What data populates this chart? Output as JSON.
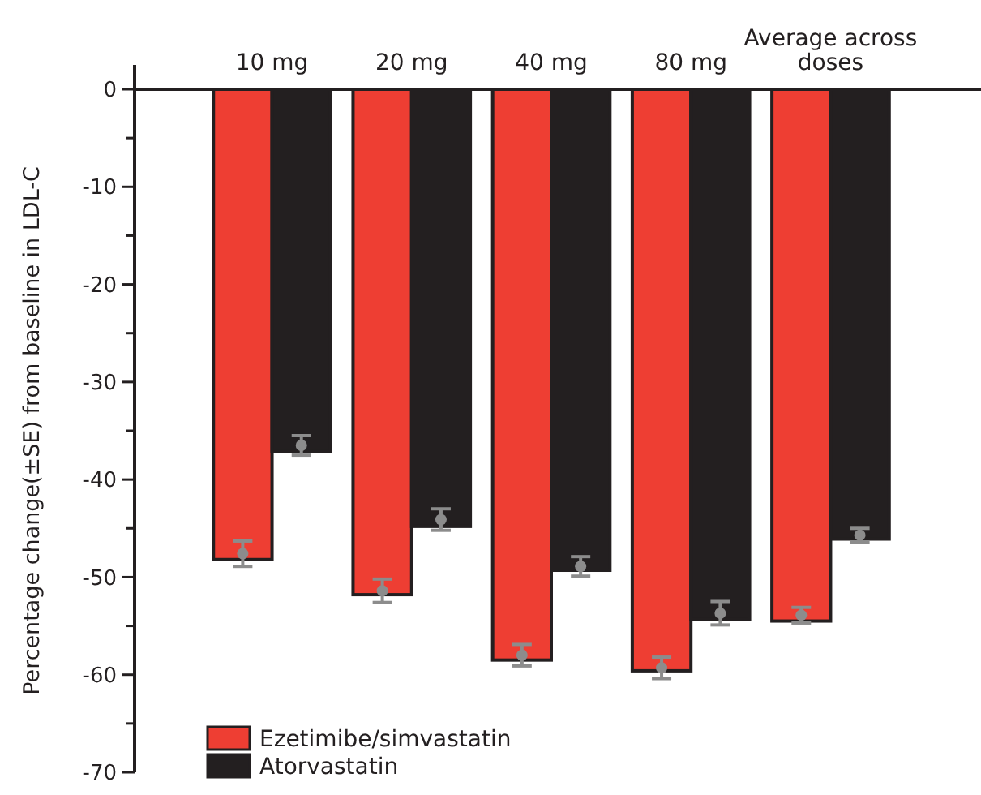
{
  "chart_data": {
    "type": "bar",
    "ylabel": "Percentage change(±SE) from baseline in LDL-C",
    "categories": [
      "10 mg",
      "20 mg",
      "40 mg",
      "80 mg",
      "Average across doses"
    ],
    "series": [
      {
        "name": "Ezetimibe/simvastatin",
        "color": "#ee3e33",
        "values": [
          -48.2,
          -51.8,
          -58.5,
          -59.6,
          -54.5
        ]
      },
      {
        "name": "Atorvastatin",
        "color": "#231f20",
        "values": [
          -37.1,
          -44.8,
          -49.3,
          -54.3,
          -46.1
        ]
      },
      {
        "type": "scatter",
        "color": "#8c8c8c",
        "x": [
          "10 mg",
          "20 mg",
          "40 mg",
          "80 mg",
          "Average across doses"
        ],
        "values": [
          -47.6,
          -51.4,
          -58.0,
          -59.3,
          -53.9
        ],
        "errors": [
          1.3,
          1.2,
          1.1,
          1.1,
          0.8
        ]
      },
      {
        "type": "scatter",
        "color": "#8c8c8c",
        "x": [
          "10 mg",
          "20 mg",
          "40 mg",
          "80 mg",
          "Average across doses"
        ],
        "values": [
          -36.5,
          -44.1,
          -48.9,
          -53.7,
          -45.7
        ],
        "errors": [
          1.0,
          1.1,
          1.0,
          1.2,
          0.7
        ]
      }
    ],
    "ylim": [
      -70,
      0
    ],
    "yticks": [
      0,
      {
        "value": -5,
        "label": null
      },
      -10,
      {
        "value": -15,
        "label": null
      },
      -20,
      {
        "value": -25,
        "label": null
      },
      -30,
      {
        "value": -35,
        "label": null
      },
      -40,
      {
        "value": -45,
        "label": null
      },
      -50,
      {
        "value": -55,
        "label": null
      },
      -60,
      {
        "value": -65,
        "label": null
      },
      -70
    ],
    "grid": false,
    "legend": "bottom left",
    "marker": "circle"
  }
}
